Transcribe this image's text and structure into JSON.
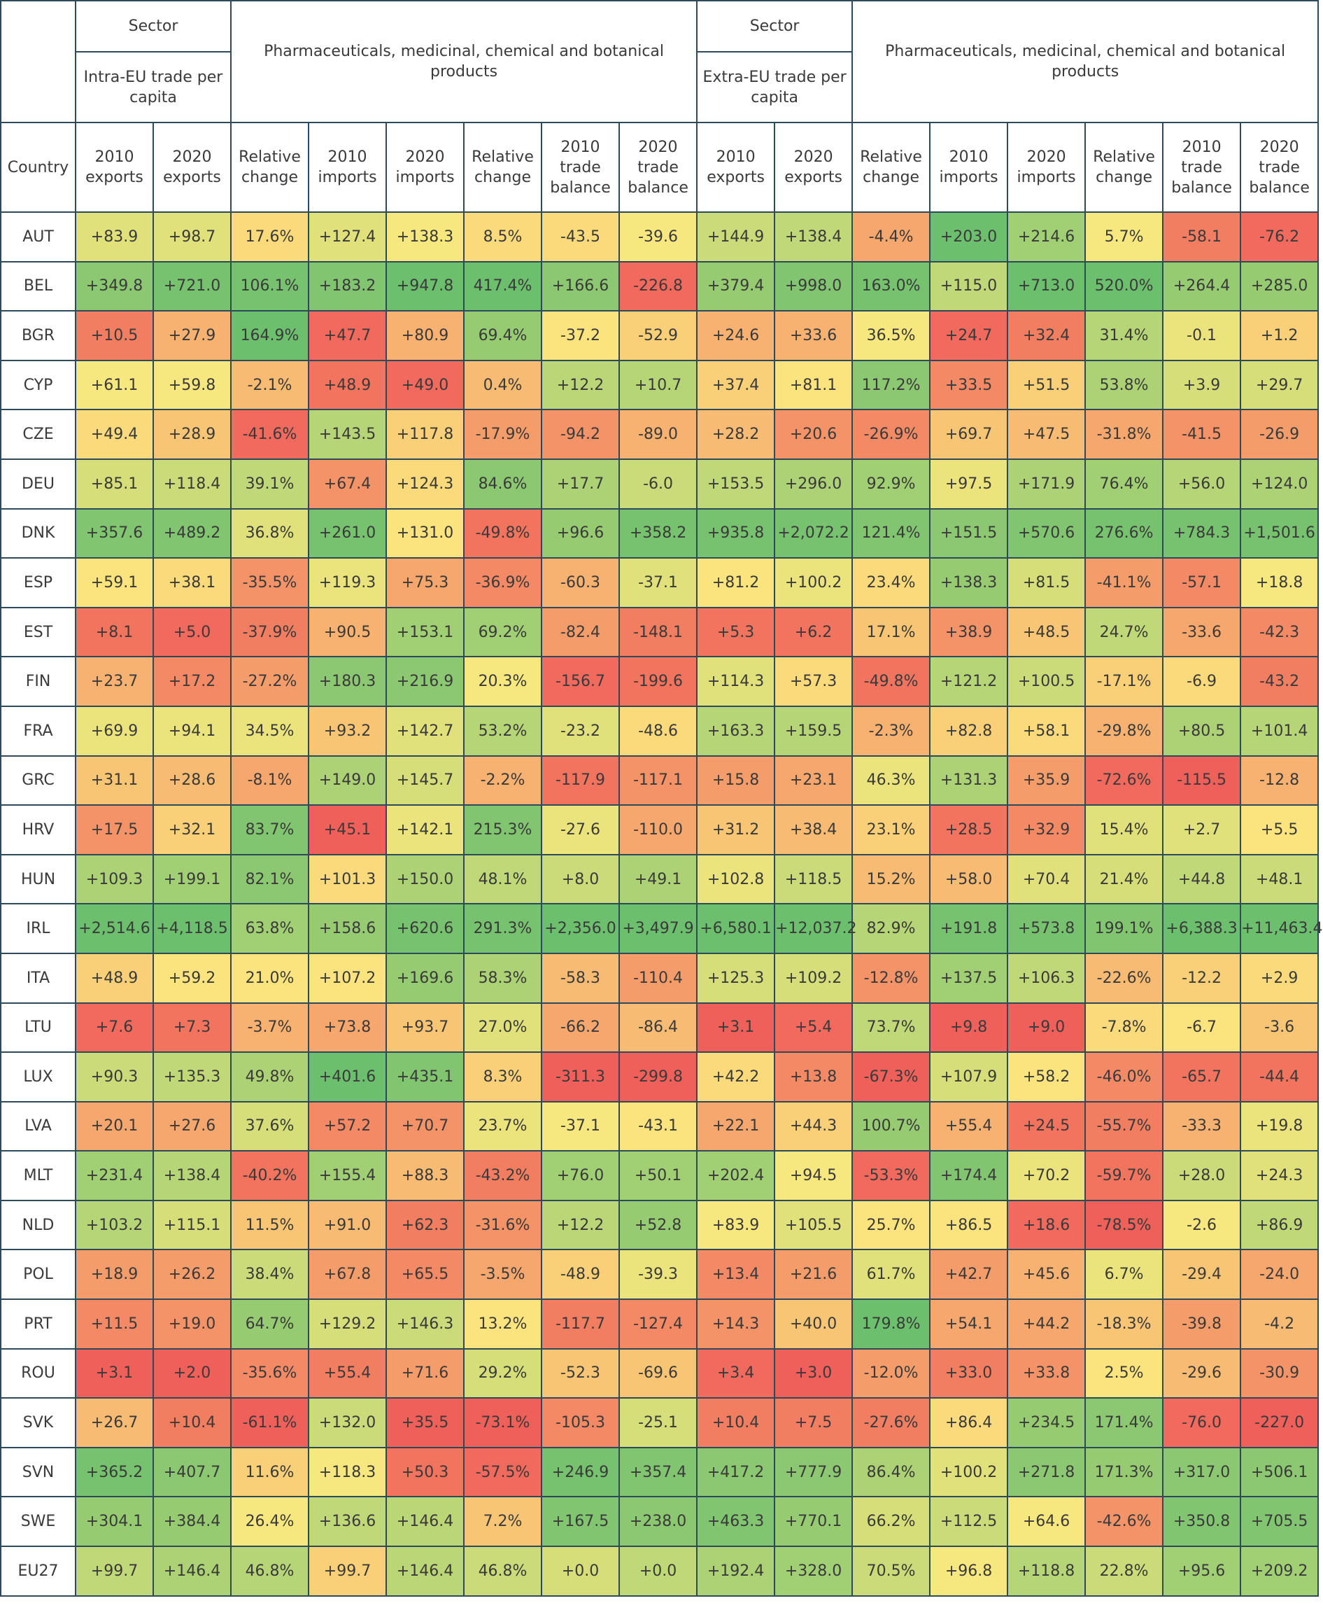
{
  "header": {
    "sector": "Sector",
    "intra_label": "Intra-EU trade per capita",
    "extra_label": "Extra-EU trade per capita",
    "product_label": "Pharmaceuticals, medicinal, chemical and botanical products",
    "country_label": "Country",
    "columns": [
      "2010 exports",
      "2020 exports",
      "Relative change",
      "2010 imports",
      "2020 imports",
      "Relative change",
      "2010 trade balance",
      "2020 trade balance"
    ]
  },
  "color_scale": {
    "low": "#f0605a",
    "mid": "#fbe97f",
    "high": "#6cbf6d"
  },
  "rows": [
    {
      "country": "AUT",
      "intra": [
        "+83.9",
        "+98.7",
        "17.6%",
        "+127.4",
        "+138.3",
        "8.5%",
        "-43.5",
        "-39.6"
      ],
      "extra": [
        "+144.9",
        "+138.4",
        "-4.4%",
        "+203.0",
        "+214.6",
        "5.7%",
        "-58.1",
        "-76.2"
      ]
    },
    {
      "country": "BEL",
      "intra": [
        "+349.8",
        "+721.0",
        "106.1%",
        "+183.2",
        "+947.8",
        "417.4%",
        "+166.6",
        "-226.8"
      ],
      "extra": [
        "+379.4",
        "+998.0",
        "163.0%",
        "+115.0",
        "+713.0",
        "520.0%",
        "+264.4",
        "+285.0"
      ]
    },
    {
      "country": "BGR",
      "intra": [
        "+10.5",
        "+27.9",
        "164.9%",
        "+47.7",
        "+80.9",
        "69.4%",
        "-37.2",
        "-52.9"
      ],
      "extra": [
        "+24.6",
        "+33.6",
        "36.5%",
        "+24.7",
        "+32.4",
        "31.4%",
        "-0.1",
        "+1.2"
      ]
    },
    {
      "country": "CYP",
      "intra": [
        "+61.1",
        "+59.8",
        "-2.1%",
        "+48.9",
        "+49.0",
        "0.4%",
        "+12.2",
        "+10.7"
      ],
      "extra": [
        "+37.4",
        "+81.1",
        "117.2%",
        "+33.5",
        "+51.5",
        "53.8%",
        "+3.9",
        "+29.7"
      ]
    },
    {
      "country": "CZE",
      "intra": [
        "+49.4",
        "+28.9",
        "-41.6%",
        "+143.5",
        "+117.8",
        "-17.9%",
        "-94.2",
        "-89.0"
      ],
      "extra": [
        "+28.2",
        "+20.6",
        "-26.9%",
        "+69.7",
        "+47.5",
        "-31.8%",
        "-41.5",
        "-26.9"
      ]
    },
    {
      "country": "DEU",
      "intra": [
        "+85.1",
        "+118.4",
        "39.1%",
        "+67.4",
        "+124.3",
        "84.6%",
        "+17.7",
        "-6.0"
      ],
      "extra": [
        "+153.5",
        "+296.0",
        "92.9%",
        "+97.5",
        "+171.9",
        "76.4%",
        "+56.0",
        "+124.0"
      ]
    },
    {
      "country": "DNK",
      "intra": [
        "+357.6",
        "+489.2",
        "36.8%",
        "+261.0",
        "+131.0",
        "-49.8%",
        "+96.6",
        "+358.2"
      ],
      "extra": [
        "+935.8",
        "+2,072.2",
        "121.4%",
        "+151.5",
        "+570.6",
        "276.6%",
        "+784.3",
        "+1,501.6"
      ]
    },
    {
      "country": "ESP",
      "intra": [
        "+59.1",
        "+38.1",
        "-35.5%",
        "+119.3",
        "+75.3",
        "-36.9%",
        "-60.3",
        "-37.1"
      ],
      "extra": [
        "+81.2",
        "+100.2",
        "23.4%",
        "+138.3",
        "+81.5",
        "-41.1%",
        "-57.1",
        "+18.8"
      ]
    },
    {
      "country": "EST",
      "intra": [
        "+8.1",
        "+5.0",
        "-37.9%",
        "+90.5",
        "+153.1",
        "69.2%",
        "-82.4",
        "-148.1"
      ],
      "extra": [
        "+5.3",
        "+6.2",
        "17.1%",
        "+38.9",
        "+48.5",
        "24.7%",
        "-33.6",
        "-42.3"
      ]
    },
    {
      "country": "FIN",
      "intra": [
        "+23.7",
        "+17.2",
        "-27.2%",
        "+180.3",
        "+216.9",
        "20.3%",
        "-156.7",
        "-199.6"
      ],
      "extra": [
        "+114.3",
        "+57.3",
        "-49.8%",
        "+121.2",
        "+100.5",
        "-17.1%",
        "-6.9",
        "-43.2"
      ]
    },
    {
      "country": "FRA",
      "intra": [
        "+69.9",
        "+94.1",
        "34.5%",
        "+93.2",
        "+142.7",
        "53.2%",
        "-23.2",
        "-48.6"
      ],
      "extra": [
        "+163.3",
        "+159.5",
        "-2.3%",
        "+82.8",
        "+58.1",
        "-29.8%",
        "+80.5",
        "+101.4"
      ]
    },
    {
      "country": "GRC",
      "intra": [
        "+31.1",
        "+28.6",
        "-8.1%",
        "+149.0",
        "+145.7",
        "-2.2%",
        "-117.9",
        "-117.1"
      ],
      "extra": [
        "+15.8",
        "+23.1",
        "46.3%",
        "+131.3",
        "+35.9",
        "-72.6%",
        "-115.5",
        "-12.8"
      ]
    },
    {
      "country": "HRV",
      "intra": [
        "+17.5",
        "+32.1",
        "83.7%",
        "+45.1",
        "+142.1",
        "215.3%",
        "-27.6",
        "-110.0"
      ],
      "extra": [
        "+31.2",
        "+38.4",
        "23.1%",
        "+28.5",
        "+32.9",
        "15.4%",
        "+2.7",
        "+5.5"
      ]
    },
    {
      "country": "HUN",
      "intra": [
        "+109.3",
        "+199.1",
        "82.1%",
        "+101.3",
        "+150.0",
        "48.1%",
        "+8.0",
        "+49.1"
      ],
      "extra": [
        "+102.8",
        "+118.5",
        "15.2%",
        "+58.0",
        "+70.4",
        "21.4%",
        "+44.8",
        "+48.1"
      ]
    },
    {
      "country": "IRL",
      "intra": [
        "+2,514.6",
        "+4,118.5",
        "63.8%",
        "+158.6",
        "+620.6",
        "291.3%",
        "+2,356.0",
        "+3,497.9"
      ],
      "extra": [
        "+6,580.1",
        "+12,037.2",
        "82.9%",
        "+191.8",
        "+573.8",
        "199.1%",
        "+6,388.3",
        "+11,463.4"
      ]
    },
    {
      "country": "ITA",
      "intra": [
        "+48.9",
        "+59.2",
        "21.0%",
        "+107.2",
        "+169.6",
        "58.3%",
        "-58.3",
        "-110.4"
      ],
      "extra": [
        "+125.3",
        "+109.2",
        "-12.8%",
        "+137.5",
        "+106.3",
        "-22.6%",
        "-12.2",
        "+2.9"
      ]
    },
    {
      "country": "LTU",
      "intra": [
        "+7.6",
        "+7.3",
        "-3.7%",
        "+73.8",
        "+93.7",
        "27.0%",
        "-66.2",
        "-86.4"
      ],
      "extra": [
        "+3.1",
        "+5.4",
        "73.7%",
        "+9.8",
        "+9.0",
        "-7.8%",
        "-6.7",
        "-3.6"
      ]
    },
    {
      "country": "LUX",
      "intra": [
        "+90.3",
        "+135.3",
        "49.8%",
        "+401.6",
        "+435.1",
        "8.3%",
        "-311.3",
        "-299.8"
      ],
      "extra": [
        "+42.2",
        "+13.8",
        "-67.3%",
        "+107.9",
        "+58.2",
        "-46.0%",
        "-65.7",
        "-44.4"
      ]
    },
    {
      "country": "LVA",
      "intra": [
        "+20.1",
        "+27.6",
        "37.6%",
        "+57.2",
        "+70.7",
        "23.7%",
        "-37.1",
        "-43.1"
      ],
      "extra": [
        "+22.1",
        "+44.3",
        "100.7%",
        "+55.4",
        "+24.5",
        "-55.7%",
        "-33.3",
        "+19.8"
      ]
    },
    {
      "country": "MLT",
      "intra": [
        "+231.4",
        "+138.4",
        "-40.2%",
        "+155.4",
        "+88.3",
        "-43.2%",
        "+76.0",
        "+50.1"
      ],
      "extra": [
        "+202.4",
        "+94.5",
        "-53.3%",
        "+174.4",
        "+70.2",
        "-59.7%",
        "+28.0",
        "+24.3"
      ]
    },
    {
      "country": "NLD",
      "intra": [
        "+103.2",
        "+115.1",
        "11.5%",
        "+91.0",
        "+62.3",
        "-31.6%",
        "+12.2",
        "+52.8"
      ],
      "extra": [
        "+83.9",
        "+105.5",
        "25.7%",
        "+86.5",
        "+18.6",
        "-78.5%",
        "-2.6",
        "+86.9"
      ]
    },
    {
      "country": "POL",
      "intra": [
        "+18.9",
        "+26.2",
        "38.4%",
        "+67.8",
        "+65.5",
        "-3.5%",
        "-48.9",
        "-39.3"
      ],
      "extra": [
        "+13.4",
        "+21.6",
        "61.7%",
        "+42.7",
        "+45.6",
        "6.7%",
        "-29.4",
        "-24.0"
      ]
    },
    {
      "country": "PRT",
      "intra": [
        "+11.5",
        "+19.0",
        "64.7%",
        "+129.2",
        "+146.3",
        "13.2%",
        "-117.7",
        "-127.4"
      ],
      "extra": [
        "+14.3",
        "+40.0",
        "179.8%",
        "+54.1",
        "+44.2",
        "-18.3%",
        "-39.8",
        "-4.2"
      ]
    },
    {
      "country": "ROU",
      "intra": [
        "+3.1",
        "+2.0",
        "-35.6%",
        "+55.4",
        "+71.6",
        "29.2%",
        "-52.3",
        "-69.6"
      ],
      "extra": [
        "+3.4",
        "+3.0",
        "-12.0%",
        "+33.0",
        "+33.8",
        "2.5%",
        "-29.6",
        "-30.9"
      ]
    },
    {
      "country": "SVK",
      "intra": [
        "+26.7",
        "+10.4",
        "-61.1%",
        "+132.0",
        "+35.5",
        "-73.1%",
        "-105.3",
        "-25.1"
      ],
      "extra": [
        "+10.4",
        "+7.5",
        "-27.6%",
        "+86.4",
        "+234.5",
        "171.4%",
        "-76.0",
        "-227.0"
      ]
    },
    {
      "country": "SVN",
      "intra": [
        "+365.2",
        "+407.7",
        "11.6%",
        "+118.3",
        "+50.3",
        "-57.5%",
        "+246.9",
        "+357.4"
      ],
      "extra": [
        "+417.2",
        "+777.9",
        "86.4%",
        "+100.2",
        "+271.8",
        "171.3%",
        "+317.0",
        "+506.1"
      ]
    },
    {
      "country": "SWE",
      "intra": [
        "+304.1",
        "+384.4",
        "26.4%",
        "+136.6",
        "+146.4",
        "7.2%",
        "+167.5",
        "+238.0"
      ],
      "extra": [
        "+463.3",
        "+770.1",
        "66.2%",
        "+112.5",
        "+64.6",
        "-42.6%",
        "+350.8",
        "+705.5"
      ]
    },
    {
      "country": "EU27",
      "intra": [
        "+99.7",
        "+146.4",
        "46.8%",
        "+99.7",
        "+146.4",
        "46.8%",
        "+0.0",
        "+0.0"
      ],
      "extra": [
        "+192.4",
        "+328.0",
        "70.5%",
        "+96.8",
        "+118.8",
        "22.8%",
        "+95.6",
        "+209.2"
      ]
    }
  ]
}
